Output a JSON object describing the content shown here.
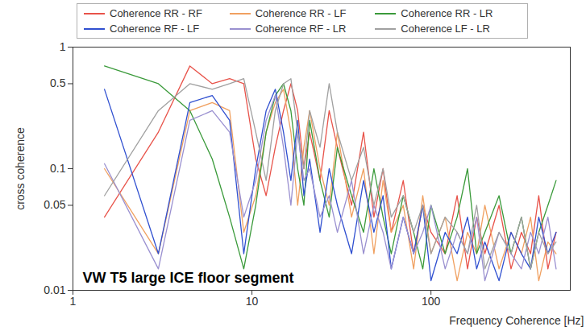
{
  "chart_data": {
    "type": "line",
    "x_label": "Frequency Coherence [Hz]",
    "y_label": "cross coherence",
    "annotation": "VW T5 large ICE floor segment",
    "log": true,
    "grid": false,
    "legend": "top",
    "xlim": [
      1,
      600
    ],
    "xticks": [
      1,
      10,
      100
    ],
    "ylim": [
      0.01,
      1
    ],
    "yticks": [
      0.01,
      0.05,
      0.1,
      0.5,
      1
    ],
    "x": [
      1.5,
      3,
      4.5,
      6,
      7.5,
      9,
      10.5,
      12,
      13.5,
      15,
      16.5,
      18,
      19.5,
      21,
      24,
      27,
      30,
      36,
      42,
      48,
      54,
      60,
      70,
      80,
      90,
      100,
      120,
      140,
      160,
      180,
      200,
      240,
      280,
      320,
      360,
      400,
      450,
      500
    ],
    "series": [
      {
        "name": "Coherence RR - RF",
        "color": "#e8534a",
        "values": [
          0.04,
          0.2,
          0.7,
          0.5,
          0.55,
          0.5,
          0.12,
          0.06,
          0.15,
          0.3,
          0.5,
          0.3,
          0.1,
          0.2,
          0.08,
          0.3,
          0.15,
          0.05,
          0.2,
          0.04,
          0.1,
          0.03,
          0.08,
          0.02,
          0.05,
          0.03,
          0.02,
          0.06,
          0.015,
          0.04,
          0.02,
          0.05,
          0.015,
          0.03,
          0.02,
          0.06,
          0.015,
          0.03
        ]
      },
      {
        "name": "Coherence RR - LF",
        "color": "#f0a060",
        "values": [
          0.1,
          0.02,
          0.3,
          0.35,
          0.3,
          0.03,
          0.06,
          0.2,
          0.35,
          0.45,
          0.2,
          0.05,
          0.15,
          0.3,
          0.1,
          0.05,
          0.2,
          0.04,
          0.1,
          0.02,
          0.08,
          0.03,
          0.05,
          0.015,
          0.06,
          0.02,
          0.04,
          0.012,
          0.03,
          0.02,
          0.05,
          0.015,
          0.03,
          0.02,
          0.04,
          0.012,
          0.025,
          0.02
        ]
      },
      {
        "name": "Coherence RR - LR",
        "color": "#3a9a3a",
        "values": [
          0.7,
          0.5,
          0.3,
          0.12,
          0.04,
          0.015,
          0.05,
          0.2,
          0.4,
          0.5,
          0.3,
          0.1,
          0.05,
          0.25,
          0.08,
          0.04,
          0.15,
          0.06,
          0.03,
          0.1,
          0.04,
          0.02,
          0.06,
          0.03,
          0.015,
          0.05,
          0.02,
          0.04,
          0.1,
          0.02,
          0.03,
          0.06,
          0.02,
          0.04,
          0.015,
          0.03,
          0.05,
          0.08
        ]
      },
      {
        "name": "Coherence RF - LF",
        "color": "#3050d0",
        "values": [
          0.45,
          0.02,
          0.35,
          0.4,
          0.25,
          0.02,
          0.1,
          0.3,
          0.45,
          0.2,
          0.08,
          0.25,
          0.06,
          0.12,
          0.03,
          0.1,
          0.05,
          0.02,
          0.08,
          0.03,
          0.06,
          0.015,
          0.04,
          0.02,
          0.05,
          0.012,
          0.03,
          0.02,
          0.04,
          0.015,
          0.025,
          0.012,
          0.03,
          0.02,
          0.015,
          0.04,
          0.02,
          0.03
        ]
      },
      {
        "name": "Coherence RF - LR",
        "color": "#9a90d0",
        "values": [
          0.11,
          0.015,
          0.25,
          0.3,
          0.2,
          0.04,
          0.08,
          0.25,
          0.4,
          0.15,
          0.05,
          0.2,
          0.08,
          0.1,
          0.04,
          0.06,
          0.03,
          0.08,
          0.02,
          0.05,
          0.03,
          0.015,
          0.04,
          0.02,
          0.03,
          0.05,
          0.015,
          0.03,
          0.02,
          0.04,
          0.012,
          0.03,
          0.02,
          0.015,
          0.03,
          0.02,
          0.04,
          0.015
        ]
      },
      {
        "name": "Coherence LF - LR",
        "color": "#a0a0a0",
        "values": [
          0.06,
          0.3,
          0.5,
          0.45,
          0.5,
          0.55,
          0.2,
          0.08,
          0.3,
          0.5,
          0.55,
          0.2,
          0.1,
          0.3,
          0.15,
          0.5,
          0.2,
          0.08,
          0.15,
          0.05,
          0.1,
          0.04,
          0.06,
          0.03,
          0.05,
          0.02,
          0.04,
          0.03,
          0.02,
          0.05,
          0.015,
          0.03,
          0.02,
          0.04,
          0.015,
          0.03,
          0.02,
          0.025
        ]
      }
    ]
  }
}
